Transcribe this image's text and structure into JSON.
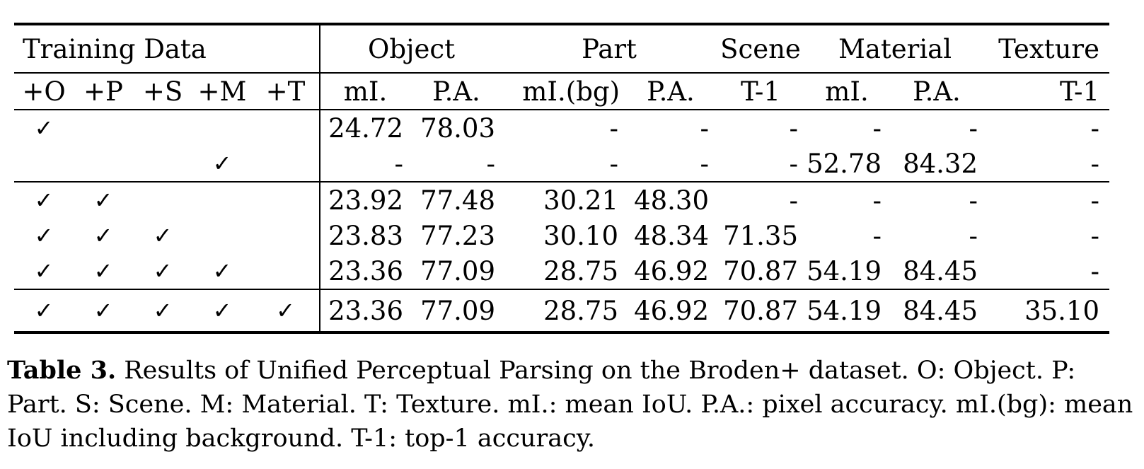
{
  "table": {
    "group_headers": [
      "Training Data",
      "Object",
      "Part",
      "Scene",
      "Material",
      "Texture"
    ],
    "sub_headers": [
      "+O",
      "+P",
      "+S",
      "+M",
      "+T",
      "mI.",
      "P.A.",
      "mI.(bg)",
      "P.A.",
      "T-1",
      "mI.",
      "P.A.",
      "T-1"
    ],
    "check_mark": "✓",
    "rows": [
      {
        "checks": [
          "✓",
          "",
          "",
          "",
          ""
        ],
        "values": [
          "24.72",
          "78.03",
          "-",
          "-",
          "-",
          "-",
          "-",
          "-"
        ]
      },
      {
        "checks": [
          "",
          "",
          "",
          "✓",
          ""
        ],
        "values": [
          "-",
          "-",
          "-",
          "-",
          "-",
          "52.78",
          "84.32",
          "-"
        ]
      },
      {
        "checks": [
          "✓",
          "✓",
          "",
          "",
          ""
        ],
        "values": [
          "23.92",
          "77.48",
          "30.21",
          "48.30",
          "-",
          "-",
          "-",
          "-"
        ]
      },
      {
        "checks": [
          "✓",
          "✓",
          "✓",
          "",
          ""
        ],
        "values": [
          "23.83",
          "77.23",
          "30.10",
          "48.34",
          "71.35",
          "-",
          "-",
          "-"
        ]
      },
      {
        "checks": [
          "✓",
          "✓",
          "✓",
          "✓",
          ""
        ],
        "values": [
          "23.36",
          "77.09",
          "28.75",
          "46.92",
          "70.87",
          "54.19",
          "84.45",
          "-"
        ]
      },
      {
        "checks": [
          "✓",
          "✓",
          "✓",
          "✓",
          "✓"
        ],
        "values": [
          "23.36",
          "77.09",
          "28.75",
          "46.92",
          "70.87",
          "54.19",
          "84.45",
          "35.10"
        ]
      }
    ]
  },
  "caption": {
    "label": "Table 3.",
    "text": " Results of Unified Perceptual Parsing on the Broden+ dataset. O: Object. P: Part. S: Scene. M: Material. T: Texture. mI.: mean IoU. P.A.: pixel accuracy. mI.(bg): mean IoU including background. T-1: top-1 accuracy."
  }
}
